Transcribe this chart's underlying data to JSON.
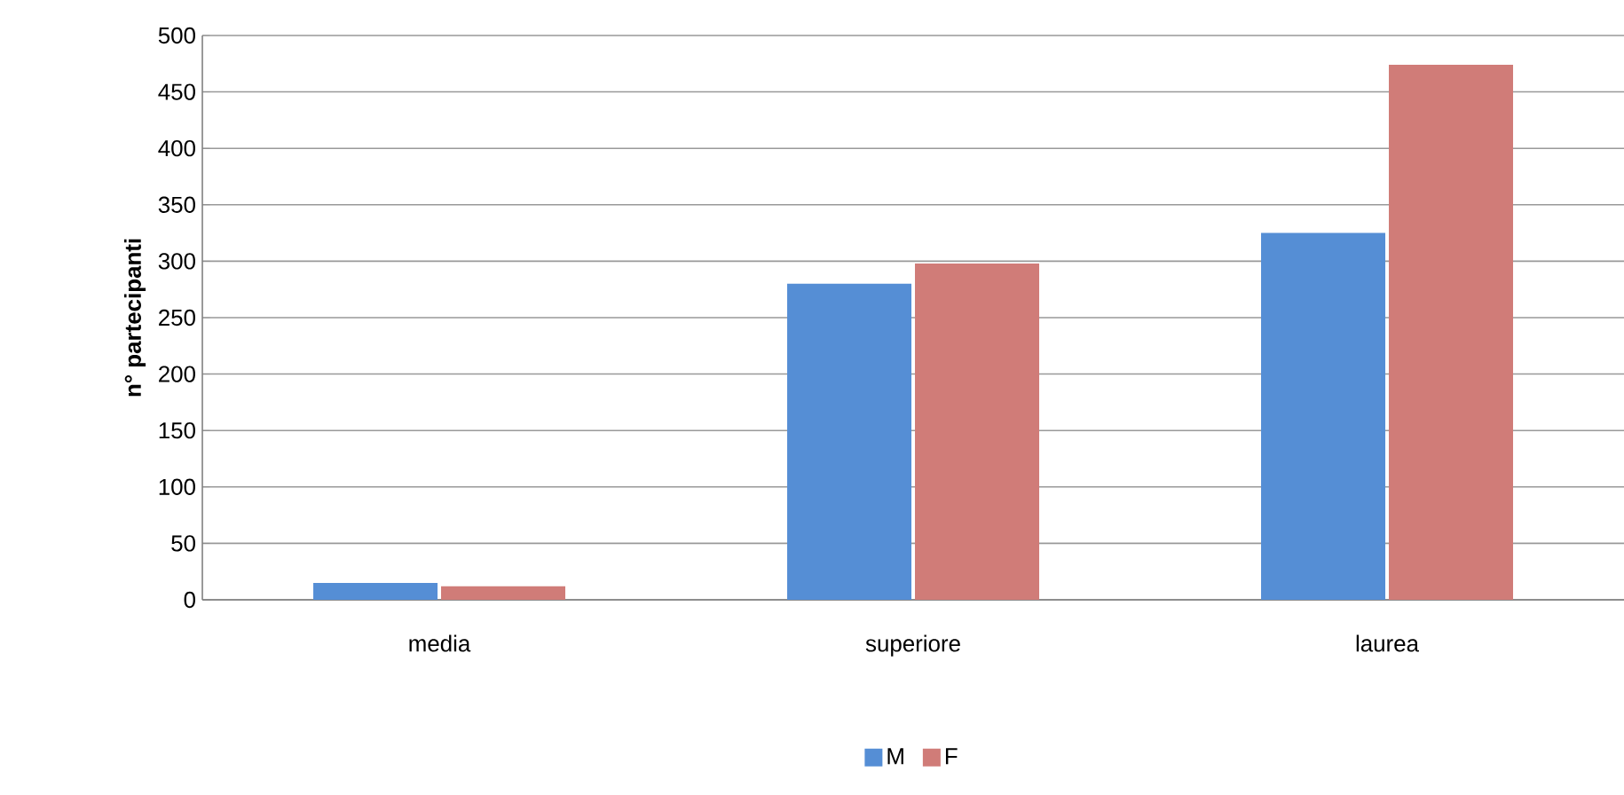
{
  "chart_data": {
    "type": "bar",
    "ylabel": "n° partecipanti",
    "categories": [
      "media",
      "superiore",
      "laurea"
    ],
    "series": [
      {
        "name": "M",
        "color": "#558ed5",
        "values": [
          15,
          280,
          325
        ]
      },
      {
        "name": "F",
        "color": "#d07c78",
        "values": [
          12,
          298,
          474
        ]
      }
    ],
    "ylim": [
      0,
      500
    ],
    "yticks": [
      0,
      50,
      100,
      150,
      200,
      250,
      300,
      350,
      400,
      450,
      500
    ],
    "grid": "y",
    "legend": "bottom"
  }
}
